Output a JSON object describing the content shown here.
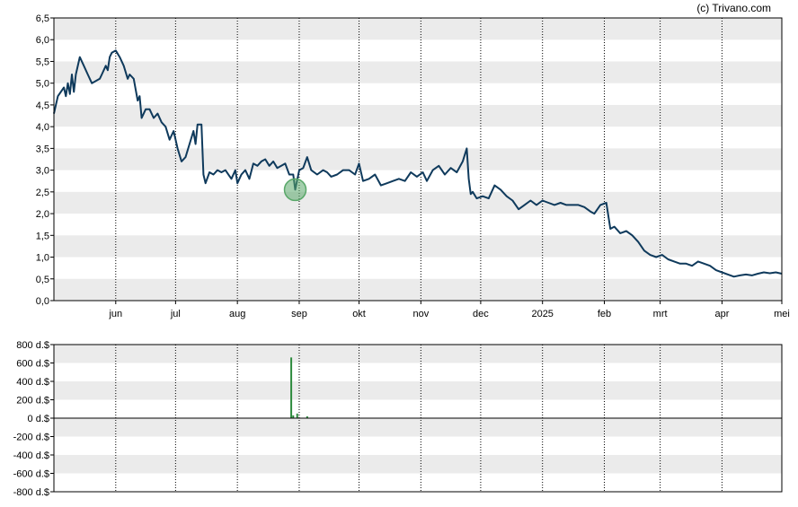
{
  "credit": "(c) Trivano.com",
  "colors": {
    "price_line": "#0f3a5c",
    "band": "#ebebeb",
    "marker_fill": "#5aa86a",
    "volume_bar": "#2e8b3e",
    "axis": "#000000",
    "vgrid": "#000000"
  },
  "chart_data": [
    {
      "type": "line",
      "name": "price",
      "ylim": [
        0,
        6.5
      ],
      "yticks": [
        "0,0",
        "0,5",
        "1,0",
        "1,5",
        "2,0",
        "2,5",
        "3,0",
        "3,5",
        "4,0",
        "4,5",
        "5,0",
        "5,5",
        "6,0",
        "6,5"
      ],
      "ytick_values": [
        0,
        0.5,
        1,
        1.5,
        2,
        2.5,
        3,
        3.5,
        4,
        4.5,
        5,
        5.5,
        6,
        6.5
      ],
      "xlim": [
        "2024-05-01",
        "2025-05-01"
      ],
      "xticks": [
        {
          "date": "2024-06-01",
          "label": "jun"
        },
        {
          "date": "2024-07-01",
          "label": "jul"
        },
        {
          "date": "2024-08-01",
          "label": "aug"
        },
        {
          "date": "2024-09-01",
          "label": "sep"
        },
        {
          "date": "2024-10-01",
          "label": "okt"
        },
        {
          "date": "2024-11-01",
          "label": "nov"
        },
        {
          "date": "2024-12-01",
          "label": "dec"
        },
        {
          "date": "2025-01-01",
          "label": "2025"
        },
        {
          "date": "2025-02-01",
          "label": "feb"
        },
        {
          "date": "2025-03-01",
          "label": "mrt"
        },
        {
          "date": "2025-04-01",
          "label": "apr"
        },
        {
          "date": "2025-05-01",
          "label": "mei"
        }
      ],
      "grid": "alternating horizontal bands, dotted vertical month lines",
      "highlight": {
        "date": "2024-08-30",
        "value": 2.55
      },
      "points": [
        [
          "2024-05-01",
          4.3
        ],
        [
          "2024-05-03",
          4.7
        ],
        [
          "2024-05-06",
          4.9
        ],
        [
          "2024-05-07",
          4.7
        ],
        [
          "2024-05-08",
          5.0
        ],
        [
          "2024-05-09",
          4.75
        ],
        [
          "2024-05-10",
          5.2
        ],
        [
          "2024-05-11",
          4.8
        ],
        [
          "2024-05-12",
          5.2
        ],
        [
          "2024-05-14",
          5.6
        ],
        [
          "2024-05-16",
          5.4
        ],
        [
          "2024-05-18",
          5.2
        ],
        [
          "2024-05-20",
          5.0
        ],
        [
          "2024-05-22",
          5.05
        ],
        [
          "2024-05-24",
          5.1
        ],
        [
          "2024-05-25",
          5.2
        ],
        [
          "2024-05-27",
          5.4
        ],
        [
          "2024-05-28",
          5.3
        ],
        [
          "2024-05-29",
          5.6
        ],
        [
          "2024-05-30",
          5.7
        ],
        [
          "2024-06-01",
          5.75
        ],
        [
          "2024-06-03",
          5.6
        ],
        [
          "2024-06-05",
          5.4
        ],
        [
          "2024-06-07",
          5.1
        ],
        [
          "2024-06-08",
          5.2
        ],
        [
          "2024-06-10",
          5.1
        ],
        [
          "2024-06-12",
          4.6
        ],
        [
          "2024-06-13",
          4.7
        ],
        [
          "2024-06-14",
          4.2
        ],
        [
          "2024-06-16",
          4.4
        ],
        [
          "2024-06-18",
          4.4
        ],
        [
          "2024-06-20",
          4.2
        ],
        [
          "2024-06-22",
          4.3
        ],
        [
          "2024-06-24",
          4.1
        ],
        [
          "2024-06-26",
          4.0
        ],
        [
          "2024-06-28",
          3.7
        ],
        [
          "2024-06-30",
          3.9
        ],
        [
          "2024-07-02",
          3.5
        ],
        [
          "2024-07-04",
          3.2
        ],
        [
          "2024-07-06",
          3.3
        ],
        [
          "2024-07-08",
          3.6
        ],
        [
          "2024-07-10",
          3.9
        ],
        [
          "2024-07-11",
          3.6
        ],
        [
          "2024-07-12",
          4.05
        ],
        [
          "2024-07-14",
          4.05
        ],
        [
          "2024-07-15",
          2.9
        ],
        [
          "2024-07-16",
          2.7
        ],
        [
          "2024-07-18",
          2.95
        ],
        [
          "2024-07-20",
          2.9
        ],
        [
          "2024-07-22",
          3.0
        ],
        [
          "2024-07-24",
          2.95
        ],
        [
          "2024-07-26",
          3.0
        ],
        [
          "2024-07-29",
          2.8
        ],
        [
          "2024-07-31",
          3.0
        ],
        [
          "2024-08-01",
          2.7
        ],
        [
          "2024-08-03",
          2.9
        ],
        [
          "2024-08-05",
          3.0
        ],
        [
          "2024-08-07",
          2.8
        ],
        [
          "2024-08-09",
          3.15
        ],
        [
          "2024-08-11",
          3.1
        ],
        [
          "2024-08-13",
          3.2
        ],
        [
          "2024-08-15",
          3.25
        ],
        [
          "2024-08-17",
          3.1
        ],
        [
          "2024-08-19",
          3.2
        ],
        [
          "2024-08-21",
          3.05
        ],
        [
          "2024-08-23",
          3.1
        ],
        [
          "2024-08-25",
          3.15
        ],
        [
          "2024-08-27",
          2.9
        ],
        [
          "2024-08-29",
          2.9
        ],
        [
          "2024-08-30",
          2.55
        ],
        [
          "2024-09-01",
          3.0
        ],
        [
          "2024-09-03",
          3.05
        ],
        [
          "2024-09-05",
          3.3
        ],
        [
          "2024-09-07",
          3.0
        ],
        [
          "2024-09-10",
          2.9
        ],
        [
          "2024-09-13",
          3.0
        ],
        [
          "2024-09-15",
          2.95
        ],
        [
          "2024-09-17",
          2.85
        ],
        [
          "2024-09-20",
          2.9
        ],
        [
          "2024-09-23",
          3.0
        ],
        [
          "2024-09-26",
          3.0
        ],
        [
          "2024-09-29",
          2.9
        ],
        [
          "2024-10-01",
          3.15
        ],
        [
          "2024-10-03",
          2.75
        ],
        [
          "2024-10-06",
          2.8
        ],
        [
          "2024-10-09",
          2.9
        ],
        [
          "2024-10-12",
          2.65
        ],
        [
          "2024-10-15",
          2.7
        ],
        [
          "2024-10-18",
          2.75
        ],
        [
          "2024-10-21",
          2.8
        ],
        [
          "2024-10-24",
          2.75
        ],
        [
          "2024-10-27",
          2.95
        ],
        [
          "2024-10-30",
          2.85
        ],
        [
          "2024-11-02",
          2.95
        ],
        [
          "2024-11-04",
          2.75
        ],
        [
          "2024-11-07",
          3.0
        ],
        [
          "2024-11-10",
          3.1
        ],
        [
          "2024-11-13",
          2.9
        ],
        [
          "2024-11-16",
          3.05
        ],
        [
          "2024-11-19",
          2.95
        ],
        [
          "2024-11-22",
          3.2
        ],
        [
          "2024-11-24",
          3.5
        ],
        [
          "2024-11-25",
          2.8
        ],
        [
          "2024-11-26",
          2.45
        ],
        [
          "2024-11-27",
          2.5
        ],
        [
          "2024-11-29",
          2.35
        ],
        [
          "2024-12-02",
          2.4
        ],
        [
          "2024-12-05",
          2.35
        ],
        [
          "2024-12-08",
          2.65
        ],
        [
          "2024-12-11",
          2.55
        ],
        [
          "2024-12-14",
          2.4
        ],
        [
          "2024-12-17",
          2.3
        ],
        [
          "2024-12-20",
          2.1
        ],
        [
          "2024-12-23",
          2.2
        ],
        [
          "2024-12-26",
          2.3
        ],
        [
          "2024-12-29",
          2.2
        ],
        [
          "2025-01-01",
          2.3
        ],
        [
          "2025-01-04",
          2.25
        ],
        [
          "2025-01-07",
          2.2
        ],
        [
          "2025-01-10",
          2.25
        ],
        [
          "2025-01-13",
          2.2
        ],
        [
          "2025-01-16",
          2.2
        ],
        [
          "2025-01-19",
          2.2
        ],
        [
          "2025-01-22",
          2.15
        ],
        [
          "2025-01-25",
          2.05
        ],
        [
          "2025-01-27",
          2.0
        ],
        [
          "2025-01-30",
          2.2
        ],
        [
          "2025-02-02",
          2.25
        ],
        [
          "2025-02-04",
          1.65
        ],
        [
          "2025-02-06",
          1.7
        ],
        [
          "2025-02-09",
          1.55
        ],
        [
          "2025-02-12",
          1.6
        ],
        [
          "2025-02-15",
          1.5
        ],
        [
          "2025-02-18",
          1.35
        ],
        [
          "2025-02-21",
          1.15
        ],
        [
          "2025-02-24",
          1.05
        ],
        [
          "2025-02-27",
          1.0
        ],
        [
          "2025-03-02",
          1.05
        ],
        [
          "2025-03-05",
          0.95
        ],
        [
          "2025-03-08",
          0.9
        ],
        [
          "2025-03-11",
          0.85
        ],
        [
          "2025-03-14",
          0.85
        ],
        [
          "2025-03-17",
          0.8
        ],
        [
          "2025-03-20",
          0.9
        ],
        [
          "2025-03-23",
          0.85
        ],
        [
          "2025-03-26",
          0.8
        ],
        [
          "2025-03-29",
          0.7
        ],
        [
          "2025-04-01",
          0.65
        ],
        [
          "2025-04-04",
          0.6
        ],
        [
          "2025-04-07",
          0.55
        ],
        [
          "2025-04-10",
          0.58
        ],
        [
          "2025-04-13",
          0.6
        ],
        [
          "2025-04-16",
          0.58
        ],
        [
          "2025-04-19",
          0.62
        ],
        [
          "2025-04-22",
          0.65
        ],
        [
          "2025-04-25",
          0.63
        ],
        [
          "2025-04-28",
          0.65
        ],
        [
          "2025-05-01",
          0.62
        ]
      ]
    },
    {
      "type": "bar",
      "name": "volume",
      "ylim": [
        -800,
        800
      ],
      "yticks": [
        "800 d.$",
        "600 d.$",
        "400 d.$",
        "200 d.$",
        "0 d.$",
        "-200 d.$",
        "-400 d.$",
        "-600 d.$",
        "-800 d.$"
      ],
      "ytick_values": [
        800,
        600,
        400,
        200,
        0,
        -200,
        -400,
        -600,
        -800
      ],
      "bars": [
        {
          "date": "2024-08-28",
          "value": 660
        },
        {
          "date": "2024-08-29",
          "value": 30
        },
        {
          "date": "2024-08-31",
          "value": 50
        },
        {
          "date": "2024-09-05",
          "value": 20
        }
      ]
    }
  ]
}
